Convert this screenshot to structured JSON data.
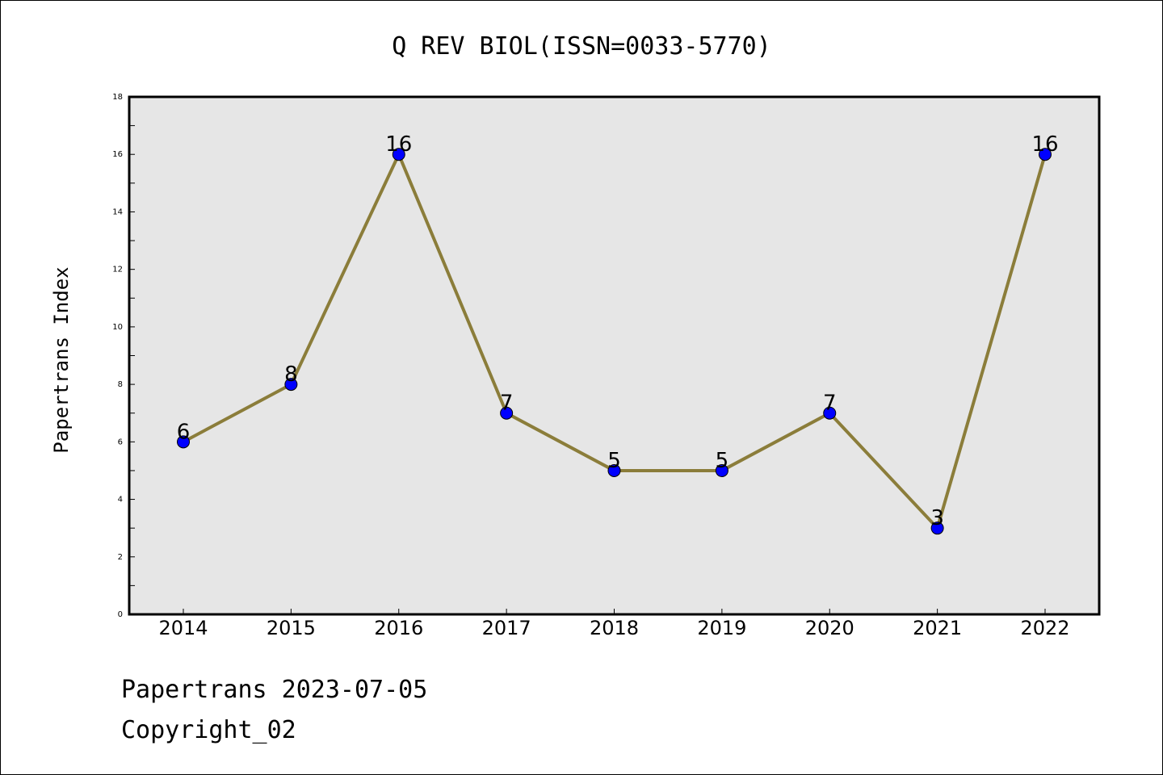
{
  "chart_data": {
    "type": "line",
    "title": "Q REV BIOL(ISSN=0033-5770)",
    "xlabel": "",
    "ylabel": "Papertrans Index",
    "categories": [
      "2014",
      "2015",
      "2016",
      "2017",
      "2018",
      "2019",
      "2020",
      "2021",
      "2022"
    ],
    "series": [
      {
        "values": [
          6,
          8,
          16,
          7,
          5,
          5,
          7,
          3,
          16
        ]
      }
    ],
    "ylim": [
      0,
      18
    ],
    "yticks": [
      0,
      2,
      4,
      6,
      8,
      10,
      12,
      14,
      16,
      18
    ],
    "grid": false,
    "data_labels": true,
    "colors": {
      "line": "#8b7d3a",
      "marker": "#0000ff",
      "plot_bg": "#e6e6e6"
    }
  },
  "footer": {
    "line1": "Papertrans 2023-07-05",
    "line2": "Copyright_02"
  }
}
